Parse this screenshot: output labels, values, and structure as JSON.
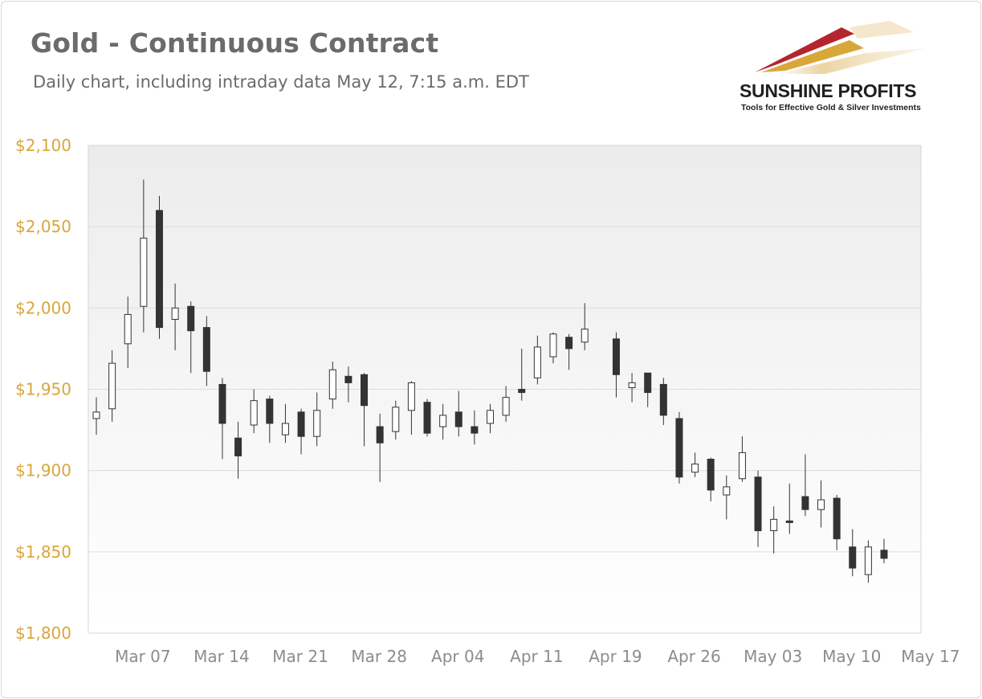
{
  "title": "Gold - Continuous Contract",
  "subtitle": "Daily chart, including intraday data May 12, 7:15 a.m. EDT",
  "logo": {
    "name": "SUNSHINE PROFITS",
    "tagline": "Tools for Effective Gold & Silver Investments",
    "colors": [
      "#b3262e",
      "#d9a63a",
      "#e9cf9a"
    ]
  },
  "chart_data": {
    "type": "candlestick",
    "title": "Gold - Continuous Contract",
    "ylim": [
      1800,
      2100
    ],
    "y_ticks": [
      2100,
      2050,
      2000,
      1950,
      1900,
      1850,
      1800
    ],
    "y_tick_labels": [
      "$2,100",
      "$2,050",
      "$2,000",
      "$1,950",
      "$1,900",
      "$1,850",
      "$1,800"
    ],
    "x_tick_labels": [
      "Mar 07",
      "Mar 14",
      "Mar 21",
      "Mar 28",
      "Apr 04",
      "Apr 11",
      "Apr 19",
      "Apr 26",
      "May 03",
      "May 10",
      "May 17"
    ],
    "grid": true,
    "colors": {
      "up": "#ffffff",
      "down": "#333333",
      "outline": "#333333",
      "tick_y": "#d9a63a",
      "tick_x": "#8c8c8c"
    },
    "candles": [
      {
        "date": "Mar 02",
        "open": 1932,
        "high": 1945,
        "low": 1922,
        "close": 1936
      },
      {
        "date": "Mar 03",
        "open": 1938,
        "high": 1974,
        "low": 1930,
        "close": 1966
      },
      {
        "date": "Mar 04",
        "open": 1978,
        "high": 2007,
        "low": 1963,
        "close": 1996
      },
      {
        "date": "Mar 07",
        "open": 2001,
        "high": 2079,
        "low": 1985,
        "close": 2043
      },
      {
        "date": "Mar 08",
        "open": 2060,
        "high": 2069,
        "low": 1981,
        "close": 1988
      },
      {
        "date": "Mar 09",
        "open": 1993,
        "high": 2015,
        "low": 1974,
        "close": 2000
      },
      {
        "date": "Mar 10",
        "open": 2001,
        "high": 2004,
        "low": 1960,
        "close": 1986
      },
      {
        "date": "Mar 11",
        "open": 1988,
        "high": 1995,
        "low": 1952,
        "close": 1961
      },
      {
        "date": "Mar 14",
        "open": 1953,
        "high": 1957,
        "low": 1907,
        "close": 1929
      },
      {
        "date": "Mar 15",
        "open": 1920,
        "high": 1930,
        "low": 1895,
        "close": 1909
      },
      {
        "date": "Mar 16",
        "open": 1928,
        "high": 1950,
        "low": 1923,
        "close": 1943
      },
      {
        "date": "Mar 17",
        "open": 1944,
        "high": 1946,
        "low": 1917,
        "close": 1929
      },
      {
        "date": "Mar 18",
        "open": 1922,
        "high": 1941,
        "low": 1917,
        "close": 1929
      },
      {
        "date": "Mar 21",
        "open": 1936,
        "high": 1938,
        "low": 1910,
        "close": 1921
      },
      {
        "date": "Mar 22",
        "open": 1921,
        "high": 1948,
        "low": 1915,
        "close": 1937
      },
      {
        "date": "Mar 23",
        "open": 1944,
        "high": 1967,
        "low": 1938,
        "close": 1962
      },
      {
        "date": "Mar 24",
        "open": 1958,
        "high": 1964,
        "low": 1942,
        "close": 1954
      },
      {
        "date": "Mar 25",
        "open": 1959,
        "high": 1960,
        "low": 1915,
        "close": 1940
      },
      {
        "date": "Mar 28",
        "open": 1927,
        "high": 1935,
        "low": 1893,
        "close": 1917
      },
      {
        "date": "Mar 29",
        "open": 1924,
        "high": 1943,
        "low": 1919,
        "close": 1939
      },
      {
        "date": "Mar 30",
        "open": 1937,
        "high": 1955,
        "low": 1922,
        "close": 1954
      },
      {
        "date": "Mar 31",
        "open": 1942,
        "high": 1944,
        "low": 1921,
        "close": 1923
      },
      {
        "date": "Apr 01",
        "open": 1927,
        "high": 1941,
        "low": 1919,
        "close": 1934
      },
      {
        "date": "Apr 04",
        "open": 1936,
        "high": 1949,
        "low": 1921,
        "close": 1927
      },
      {
        "date": "Apr 05",
        "open": 1927,
        "high": 1937,
        "low": 1916,
        "close": 1923
      },
      {
        "date": "Apr 06",
        "open": 1929,
        "high": 1941,
        "low": 1923,
        "close": 1937
      },
      {
        "date": "Apr 07",
        "open": 1934,
        "high": 1952,
        "low": 1930,
        "close": 1945
      },
      {
        "date": "Apr 08",
        "open": 1950,
        "high": 1975,
        "low": 1943,
        "close": 1948
      },
      {
        "date": "Apr 11",
        "open": 1957,
        "high": 1983,
        "low": 1953,
        "close": 1976
      },
      {
        "date": "Apr 12",
        "open": 1970,
        "high": 1985,
        "low": 1966,
        "close": 1984
      },
      {
        "date": "Apr 13",
        "open": 1982,
        "high": 1984,
        "low": 1962,
        "close": 1975
      },
      {
        "date": "Apr 14",
        "open": 1979,
        "high": 2003,
        "low": 1974,
        "close": 1987
      },
      {
        "date": "Apr 18",
        "open": 1981,
        "high": 1985,
        "low": 1945,
        "close": 1959
      },
      {
        "date": "Apr 19",
        "open": 1951,
        "high": 1960,
        "low": 1942,
        "close": 1954
      },
      {
        "date": "Apr 20",
        "open": 1960,
        "high": 1960,
        "low": 1939,
        "close": 1948
      },
      {
        "date": "Apr 21",
        "open": 1953,
        "high": 1957,
        "low": 1928,
        "close": 1934
      },
      {
        "date": "Apr 22",
        "open": 1932,
        "high": 1936,
        "low": 1892,
        "close": 1896
      },
      {
        "date": "Apr 25",
        "open": 1899,
        "high": 1911,
        "low": 1896,
        "close": 1904
      },
      {
        "date": "Apr 26",
        "open": 1907,
        "high": 1908,
        "low": 1881,
        "close": 1888
      },
      {
        "date": "Apr 27",
        "open": 1885,
        "high": 1897,
        "low": 1870,
        "close": 1890
      },
      {
        "date": "Apr 28",
        "open": 1895,
        "high": 1921,
        "low": 1893,
        "close": 1911
      },
      {
        "date": "Apr 29",
        "open": 1896,
        "high": 1900,
        "low": 1853,
        "close": 1863
      },
      {
        "date": "May 02",
        "open": 1863,
        "high": 1878,
        "low": 1849,
        "close": 1870
      },
      {
        "date": "May 03",
        "open": 1869,
        "high": 1892,
        "low": 1861,
        "close": 1868
      },
      {
        "date": "May 04",
        "open": 1884,
        "high": 1910,
        "low": 1872,
        "close": 1876
      },
      {
        "date": "May 05",
        "open": 1876,
        "high": 1894,
        "low": 1865,
        "close": 1882
      },
      {
        "date": "May 06",
        "open": 1883,
        "high": 1885,
        "low": 1851,
        "close": 1858
      },
      {
        "date": "May 09",
        "open": 1853,
        "high": 1864,
        "low": 1835,
        "close": 1840
      },
      {
        "date": "May 10",
        "open": 1836,
        "high": 1857,
        "low": 1831,
        "close": 1853
      },
      {
        "date": "May 11",
        "open": 1851,
        "high": 1858,
        "low": 1843,
        "close": 1846
      }
    ]
  }
}
